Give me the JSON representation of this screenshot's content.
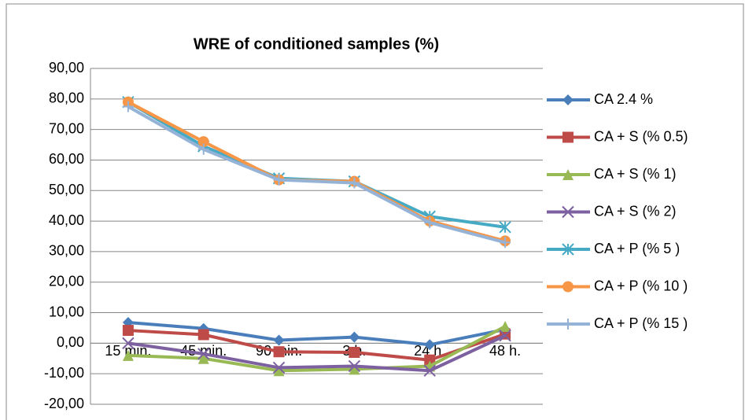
{
  "chart_data": {
    "type": "line",
    "title": "WRE of conditioned samples (%)",
    "categories": [
      "15 min.",
      "45 min.",
      "90 min.",
      "3 h.",
      "24 h.",
      "48 h."
    ],
    "series": [
      {
        "name": "CA 2.4 %",
        "color": "#4a7ebb",
        "marker": "diamond",
        "values": [
          6.8,
          4.8,
          1.0,
          2.0,
          -0.5,
          4.5
        ]
      },
      {
        "name": "CA + S (% 0.5)",
        "color": "#be4b48",
        "marker": "square",
        "values": [
          4.2,
          2.8,
          -2.8,
          -3.0,
          -5.5,
          3.0
        ]
      },
      {
        "name": "CA + S (% 1)",
        "color": "#98b954",
        "marker": "triangle",
        "values": [
          -4.0,
          -5.0,
          -9.0,
          -8.5,
          -7.5,
          5.5
        ]
      },
      {
        "name": "CA + S (% 2)",
        "color": "#7d60a0",
        "marker": "x",
        "values": [
          0.0,
          -3.5,
          -8.0,
          -7.5,
          -9.0,
          2.5
        ]
      },
      {
        "name": "CA + P (% 5 )",
        "color": "#46aac5",
        "marker": "star",
        "values": [
          79,
          64.5,
          54,
          53,
          41.5,
          38
        ]
      },
      {
        "name": "CA + P (% 10 )",
        "color": "#f79646",
        "marker": "circle",
        "values": [
          79,
          66,
          53.5,
          53,
          40,
          33.5
        ]
      },
      {
        "name": "CA + P (% 15  )",
        "color": "#95b3d7",
        "marker": "plus",
        "values": [
          77.5,
          63.5,
          53.5,
          52.5,
          39.5,
          33
        ]
      }
    ],
    "ylim": [
      -20,
      90
    ],
    "yticks": [
      {
        "value": -20,
        "label": "-20,00"
      },
      {
        "value": -10,
        "label": "-10,00"
      },
      {
        "value": 0,
        "label": "0,00"
      },
      {
        "value": 10,
        "label": "10,00"
      },
      {
        "value": 20,
        "label": "20,00"
      },
      {
        "value": 30,
        "label": "30,00"
      },
      {
        "value": 40,
        "label": "40,00"
      },
      {
        "value": 50,
        "label": "50,00"
      },
      {
        "value": 60,
        "label": "60,00"
      },
      {
        "value": 70,
        "label": "70,00"
      },
      {
        "value": 80,
        "label": "80,00"
      },
      {
        "value": 90,
        "label": "90,00"
      }
    ],
    "grid": true,
    "legend": "right"
  }
}
